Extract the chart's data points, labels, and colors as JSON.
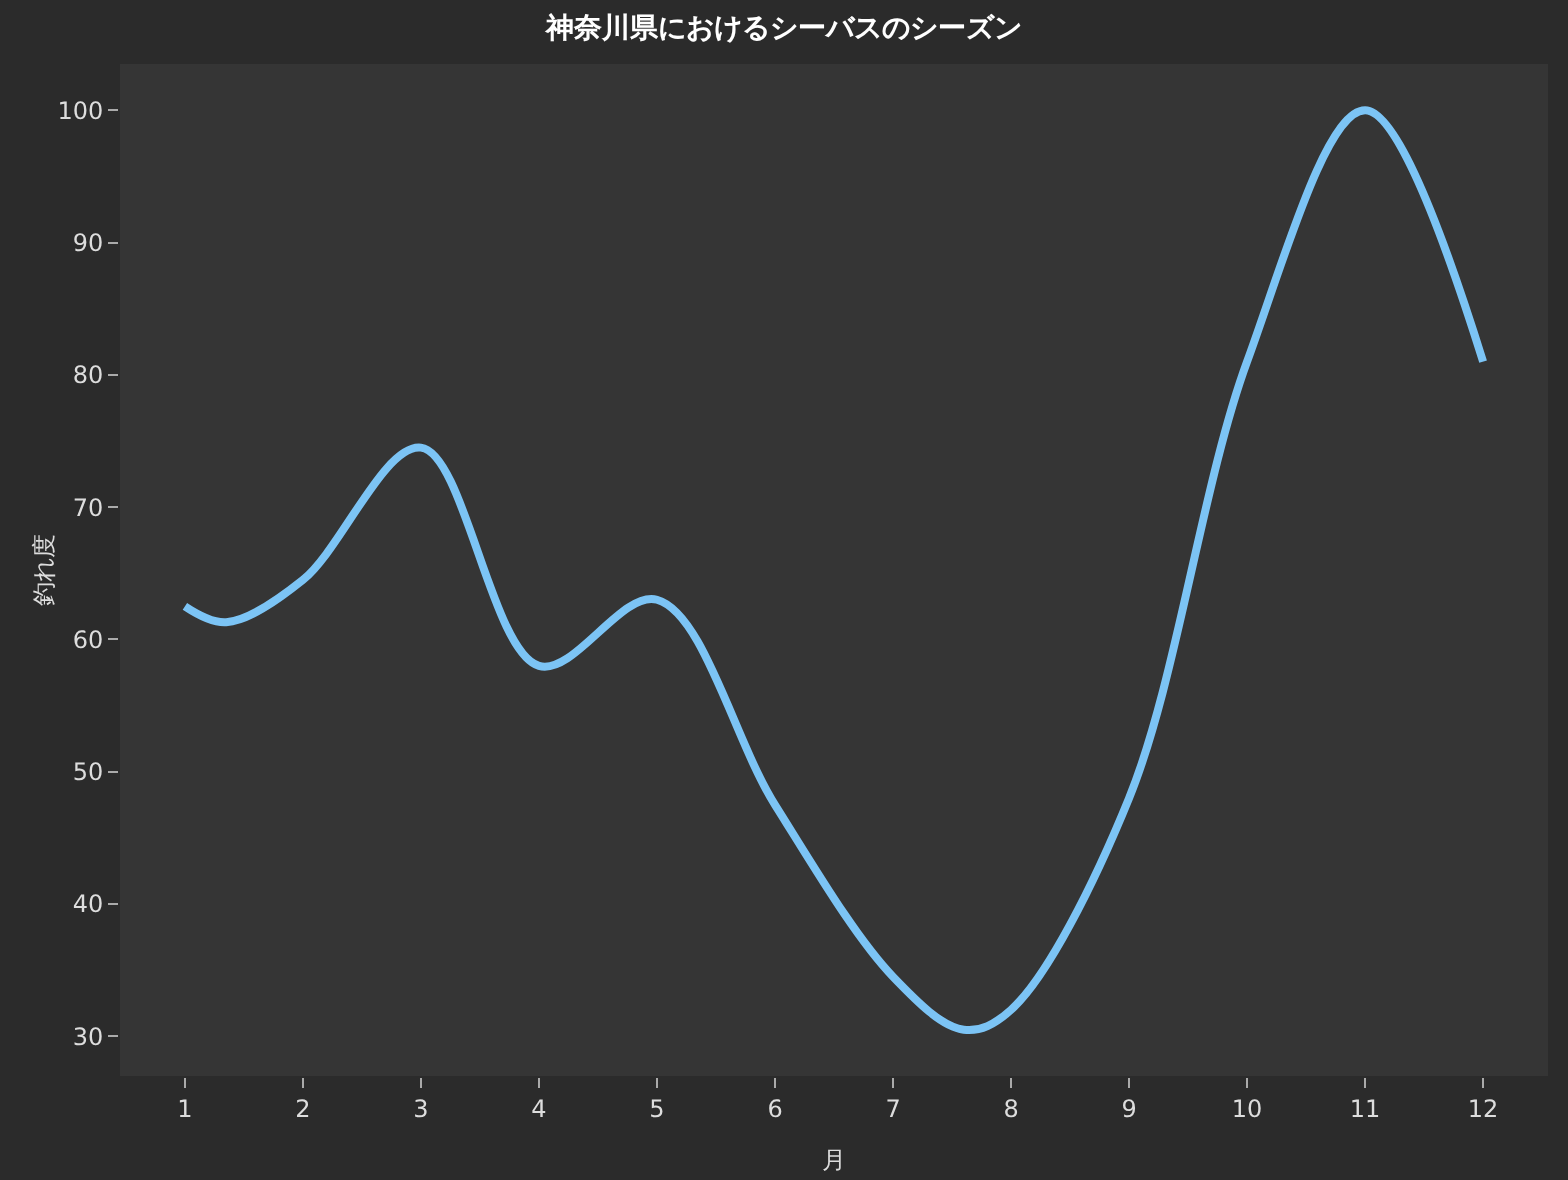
{
  "chart_data": {
    "type": "line",
    "title": "神奈川県におけるシーバスのシーズン",
    "xlabel": "月",
    "ylabel": "釣れ度",
    "x": [
      1,
      1.35,
      2,
      3,
      4,
      5,
      6,
      7,
      7.6,
      8,
      9,
      10,
      11,
      12
    ],
    "series": [
      {
        "color": "#7cc4f5",
        "values": [
          62.5,
          61.3,
          64.5,
          74.5,
          58,
          63,
          47.5,
          34.5,
          30.5,
          32,
          48,
          81,
          100,
          81
        ]
      }
    ],
    "xlim": [
      0.45,
      12.55
    ],
    "xticks": [
      1,
      2,
      3,
      4,
      5,
      6,
      7,
      8,
      9,
      10,
      11,
      12
    ],
    "ylim": [
      27,
      103.5
    ],
    "yticks": [
      30,
      40,
      50,
      60,
      70,
      80,
      90,
      100
    ],
    "marker": "none",
    "line_style": "solid"
  }
}
